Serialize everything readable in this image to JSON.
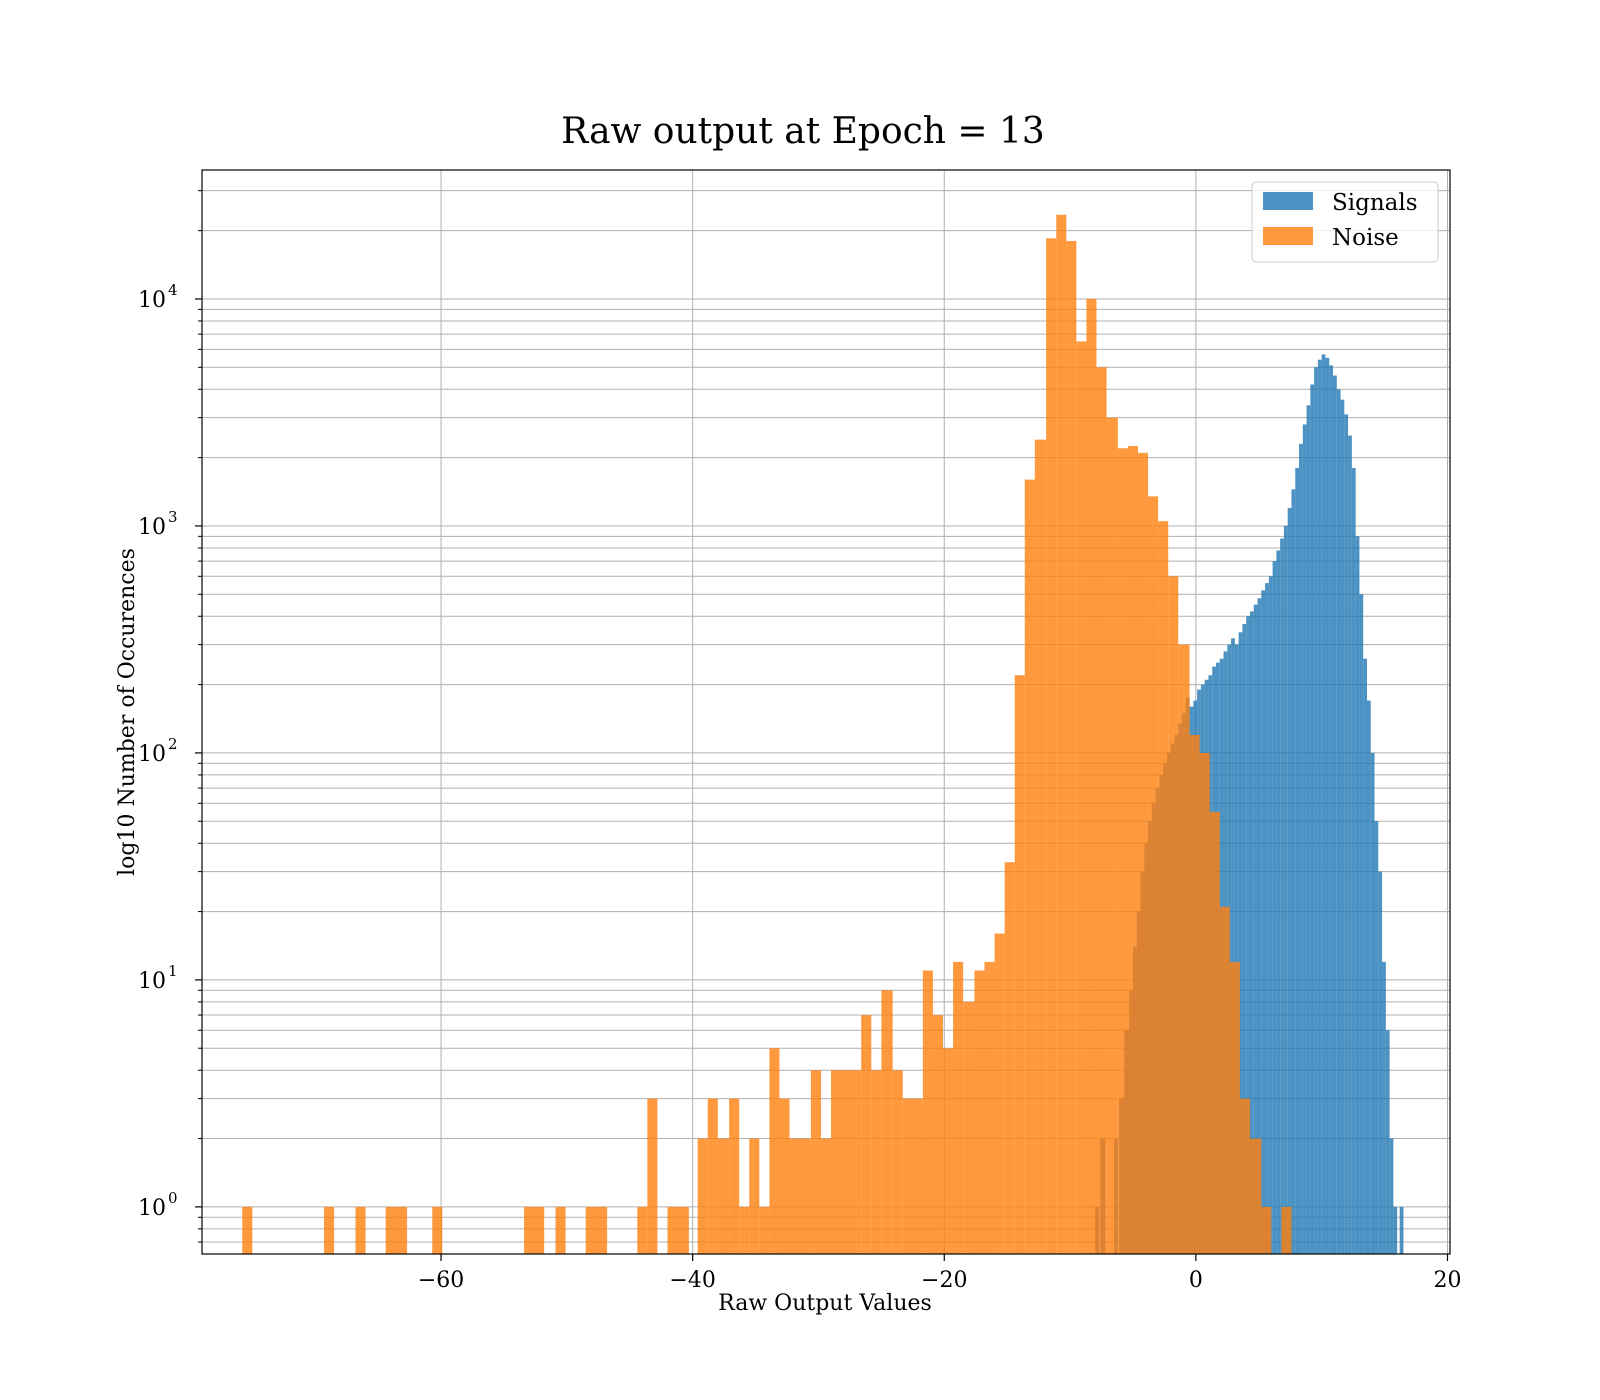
{
  "chart_data": {
    "type": "bar",
    "title": "Raw output at Epoch = 13",
    "xlabel": "Raw Output Values",
    "ylabel": "log10 Number of Occurences",
    "yscale": "log",
    "xlim": [
      -79,
      20.2
    ],
    "ylim": [
      0.62,
      37000
    ],
    "xticks": [
      -60,
      -40,
      -20,
      0,
      20
    ],
    "xtick_labels": [
      "−60",
      "−40",
      "−20",
      "0",
      "20"
    ],
    "yticks": [
      1,
      10,
      100,
      1000,
      10000
    ],
    "ytick_labels": [
      "10",
      "10",
      "10",
      "10",
      "10"
    ],
    "ytick_exponents": [
      "0",
      "1",
      "2",
      "3",
      "4"
    ],
    "grid": true,
    "legend_position": "top-right",
    "colors": {
      "signals": "#1f77b4",
      "noise": "#ff7f0e"
    },
    "series": [
      {
        "name": "Signals",
        "color": "#1f77b4",
        "alpha": 0.8,
        "bars": [
          [
            -8.0,
            -7.7,
            1
          ],
          [
            -7.6,
            -7.2,
            2
          ],
          [
            -6.5,
            -6.2,
            2
          ],
          [
            -6.1,
            -5.7,
            3
          ],
          [
            -5.7,
            -5.3,
            6
          ],
          [
            -5.3,
            -5.0,
            9
          ],
          [
            -5.0,
            -4.7,
            14
          ],
          [
            -4.7,
            -4.4,
            20
          ],
          [
            -4.4,
            -4.1,
            30
          ],
          [
            -4.1,
            -3.8,
            40
          ],
          [
            -3.8,
            -3.5,
            50
          ],
          [
            -3.5,
            -3.2,
            60
          ],
          [
            -3.2,
            -2.9,
            70
          ],
          [
            -2.9,
            -2.6,
            80
          ],
          [
            -2.6,
            -2.3,
            90
          ],
          [
            -2.3,
            -2.0,
            100
          ],
          [
            -2.0,
            -1.7,
            110
          ],
          [
            -1.7,
            -1.4,
            120
          ],
          [
            -1.4,
            -1.1,
            135
          ],
          [
            -1.1,
            -0.8,
            150
          ],
          [
            -0.8,
            -0.5,
            175
          ],
          [
            -0.5,
            -0.2,
            160
          ],
          [
            -0.2,
            0.1,
            170
          ],
          [
            0.1,
            0.4,
            190
          ],
          [
            0.4,
            0.7,
            200
          ],
          [
            0.7,
            1.0,
            210
          ],
          [
            1.0,
            1.3,
            220
          ],
          [
            1.3,
            1.6,
            240
          ],
          [
            1.6,
            1.9,
            250
          ],
          [
            1.9,
            2.2,
            260
          ],
          [
            2.2,
            2.5,
            280
          ],
          [
            2.5,
            2.8,
            300
          ],
          [
            2.8,
            3.1,
            320
          ],
          [
            3.1,
            3.4,
            300
          ],
          [
            3.4,
            3.7,
            340
          ],
          [
            3.7,
            4.0,
            370
          ],
          [
            4.0,
            4.3,
            400
          ],
          [
            4.3,
            4.6,
            420
          ],
          [
            4.6,
            4.9,
            450
          ],
          [
            4.9,
            5.2,
            480
          ],
          [
            5.2,
            5.5,
            520
          ],
          [
            5.5,
            5.8,
            560
          ],
          [
            5.8,
            6.1,
            600
          ],
          [
            6.1,
            6.4,
            700
          ],
          [
            6.4,
            6.7,
            780
          ],
          [
            6.7,
            7.0,
            880
          ],
          [
            7.0,
            7.3,
            1000
          ],
          [
            7.3,
            7.6,
            1200
          ],
          [
            7.6,
            7.9,
            1450
          ],
          [
            7.9,
            8.2,
            1800
          ],
          [
            8.2,
            8.5,
            2300
          ],
          [
            8.5,
            8.8,
            2800
          ],
          [
            8.8,
            9.1,
            3400
          ],
          [
            9.1,
            9.4,
            4200
          ],
          [
            9.4,
            9.7,
            5000
          ],
          [
            9.7,
            10.0,
            5400
          ],
          [
            10.0,
            10.3,
            5700
          ],
          [
            10.3,
            10.6,
            5500
          ],
          [
            10.6,
            10.9,
            5100
          ],
          [
            10.9,
            11.2,
            4600
          ],
          [
            11.2,
            11.5,
            4000
          ],
          [
            11.5,
            11.8,
            3600
          ],
          [
            11.8,
            12.1,
            3100
          ],
          [
            12.1,
            12.4,
            2500
          ],
          [
            12.4,
            12.7,
            1800
          ],
          [
            12.7,
            13.0,
            900
          ],
          [
            13.0,
            13.3,
            500
          ],
          [
            13.3,
            13.6,
            260
          ],
          [
            13.6,
            13.9,
            170
          ],
          [
            13.9,
            14.2,
            100
          ],
          [
            14.2,
            14.5,
            50
          ],
          [
            14.5,
            14.8,
            30
          ],
          [
            14.8,
            15.1,
            12
          ],
          [
            15.1,
            15.4,
            6
          ],
          [
            15.4,
            15.7,
            2
          ],
          [
            15.7,
            16.0,
            1
          ],
          [
            16.2,
            16.5,
            1
          ]
        ]
      },
      {
        "name": "Noise",
        "color": "#ff7f0e",
        "alpha": 0.8,
        "bars": [
          [
            -75.8,
            -75.0,
            1
          ],
          [
            -69.3,
            -68.5,
            1
          ],
          [
            -66.8,
            -66.0,
            1
          ],
          [
            -64.4,
            -62.7,
            1
          ],
          [
            -60.7,
            -59.9,
            1
          ],
          [
            -53.4,
            -51.8,
            1
          ],
          [
            -50.9,
            -50.1,
            1
          ],
          [
            -48.5,
            -46.8,
            1
          ],
          [
            -44.4,
            -43.6,
            1
          ],
          [
            -43.6,
            -42.8,
            3
          ],
          [
            -42.0,
            -40.3,
            1
          ],
          [
            -39.6,
            -38.8,
            2
          ],
          [
            -38.8,
            -38.0,
            3
          ],
          [
            -38.0,
            -37.1,
            2
          ],
          [
            -37.1,
            -36.3,
            3
          ],
          [
            -36.3,
            -35.5,
            1
          ],
          [
            -35.5,
            -34.7,
            2
          ],
          [
            -34.7,
            -33.9,
            1
          ],
          [
            -33.9,
            -33.1,
            5
          ],
          [
            -33.1,
            -32.3,
            3
          ],
          [
            -32.3,
            -30.6,
            2
          ],
          [
            -30.6,
            -29.8,
            4
          ],
          [
            -29.8,
            -29.0,
            2
          ],
          [
            -29.0,
            -26.6,
            4
          ],
          [
            -26.6,
            -25.8,
            7
          ],
          [
            -25.8,
            -25.0,
            4
          ],
          [
            -25.0,
            -24.1,
            9
          ],
          [
            -24.1,
            -23.3,
            4
          ],
          [
            -23.3,
            -21.7,
            3
          ],
          [
            -21.7,
            -20.9,
            11
          ],
          [
            -20.9,
            -20.1,
            7
          ],
          [
            -20.1,
            -19.3,
            5
          ],
          [
            -19.3,
            -18.5,
            12
          ],
          [
            -18.5,
            -17.6,
            8
          ],
          [
            -17.6,
            -16.8,
            11
          ],
          [
            -16.8,
            -16.0,
            12
          ],
          [
            -16.0,
            -15.2,
            16
          ],
          [
            -15.2,
            -14.4,
            33
          ],
          [
            -14.4,
            -13.6,
            220
          ],
          [
            -13.6,
            -12.8,
            1600
          ],
          [
            -12.8,
            -11.9,
            2400
          ],
          [
            -11.9,
            -11.1,
            18500
          ],
          [
            -11.1,
            -10.3,
            23500
          ],
          [
            -10.3,
            -9.5,
            18000
          ],
          [
            -9.5,
            -8.7,
            6500
          ],
          [
            -8.7,
            -7.9,
            10000
          ],
          [
            -7.9,
            -7.1,
            5000
          ],
          [
            -7.1,
            -6.2,
            3000
          ],
          [
            -6.2,
            -5.4,
            2200
          ],
          [
            -5.4,
            -4.6,
            2250
          ],
          [
            -4.6,
            -3.8,
            2100
          ],
          [
            -3.8,
            -3.0,
            1350
          ],
          [
            -3.0,
            -2.2,
            1050
          ],
          [
            -2.2,
            -1.4,
            600
          ],
          [
            -1.4,
            -0.5,
            300
          ],
          [
            -0.5,
            0.3,
            120
          ],
          [
            0.3,
            1.1,
            100
          ],
          [
            1.1,
            1.9,
            55
          ],
          [
            1.9,
            2.7,
            21
          ],
          [
            2.7,
            3.5,
            12
          ],
          [
            3.5,
            4.3,
            3
          ],
          [
            4.3,
            5.2,
            2
          ],
          [
            5.2,
            6.0,
            1
          ],
          [
            6.8,
            7.6,
            1
          ]
        ]
      }
    ]
  }
}
